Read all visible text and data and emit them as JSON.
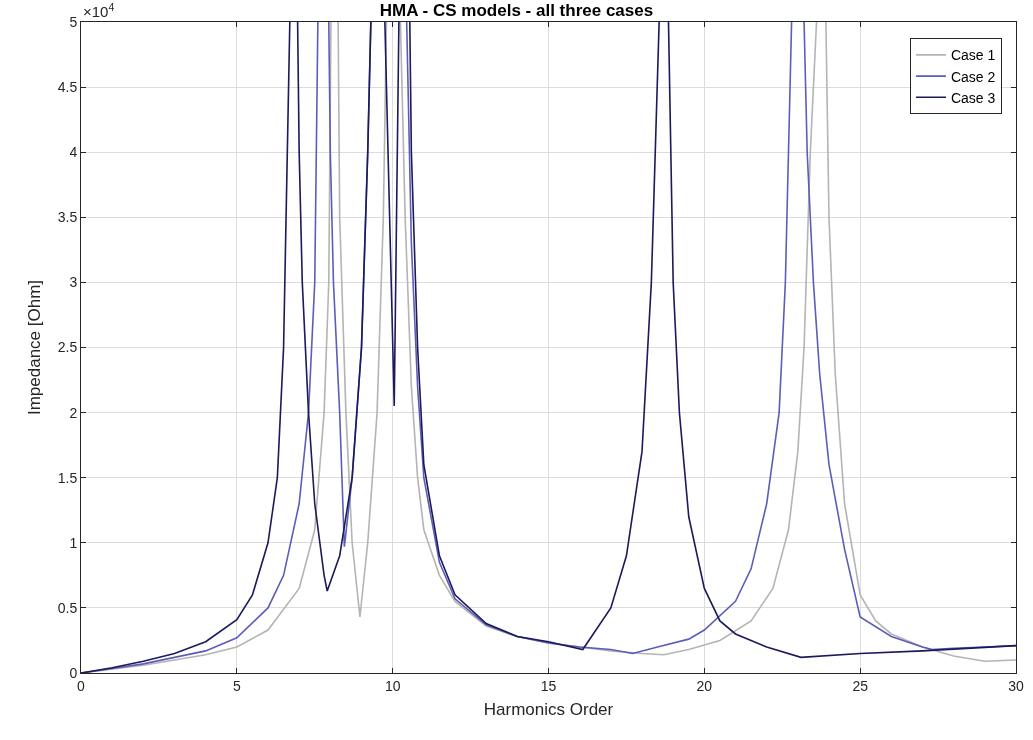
{
  "chart_data": {
    "type": "line",
    "title": "HMA - CS models - all three cases",
    "xlabel": "Harmonics Order",
    "ylabel": "Impedance [Ohm]",
    "annotations": [
      "×10$^{4}$"
    ],
    "xlim": [
      0,
      30
    ],
    "xticks": [
      0,
      5,
      10,
      15,
      20,
      25,
      30
    ],
    "ylim": [
      0,
      5
    ],
    "yticks": [
      0,
      0.5,
      1,
      1.5,
      2,
      2.5,
      3,
      3.5,
      4,
      4.5,
      5
    ],
    "grid": true,
    "legend": "top right",
    "line_style": "solid",
    "marker": "none",
    "series": [
      {
        "name": "Case 1",
        "color": "#b4b4b4",
        "x": [
          0,
          2,
          4,
          5,
          6,
          7,
          7.5,
          7.8,
          7.95,
          8.02,
          8.13,
          8.25,
          8.3,
          8.5,
          8.7,
          8.95,
          9.2,
          9.5,
          9.7,
          9.8,
          10,
          10.25,
          10.4,
          10.6,
          10.8,
          11,
          11.5,
          12,
          13,
          14,
          15,
          16,
          17,
          18,
          18.7,
          19.5,
          20.5,
          21.5,
          22.2,
          22.7,
          23,
          23.2,
          23.4,
          23.6,
          23.75,
          23.9,
          24,
          24.2,
          24.5,
          25,
          25.5,
          26,
          27,
          28,
          29,
          30
        ],
        "values": [
          0,
          0.06,
          0.14,
          0.2,
          0.33,
          0.65,
          1.1,
          2,
          3,
          5,
          null,
          5,
          3.5,
          2,
          1,
          0.43,
          1,
          2,
          3.5,
          5,
          null,
          5,
          3.5,
          2.2,
          1.5,
          1.1,
          0.75,
          0.55,
          0.36,
          0.28,
          0.23,
          0.2,
          0.17,
          0.15,
          0.14,
          0.18,
          0.25,
          0.4,
          0.65,
          1.1,
          1.7,
          2.5,
          4,
          5,
          null,
          5,
          3.5,
          2.3,
          1.3,
          0.6,
          0.4,
          0.3,
          0.2,
          0.13,
          0.09,
          0.1
        ]
      },
      {
        "name": "Case 2",
        "color": "#5b5eb8",
        "x": [
          0,
          2,
          4,
          5,
          6,
          6.5,
          7,
          7.3,
          7.5,
          7.6,
          7.8,
          7.95,
          8,
          8.1,
          8.3,
          8.45,
          8.7,
          9,
          9.2,
          9.3,
          10,
          10.45,
          10.6,
          10.8,
          11,
          11.5,
          12,
          13,
          14,
          15,
          16,
          17,
          17.7,
          18.5,
          19.5,
          20,
          21,
          21.5,
          22,
          22.4,
          22.6,
          22.8,
          23,
          23.2,
          23.3,
          23.5,
          23.7,
          24,
          24.5,
          25,
          26,
          27,
          27.3,
          28,
          29,
          30
        ],
        "values": [
          0,
          0.07,
          0.17,
          0.27,
          0.5,
          0.75,
          1.3,
          2,
          3,
          5,
          null,
          5,
          4,
          3,
          2,
          0.97,
          1.5,
          2.5,
          4,
          5,
          null,
          5,
          3.3,
          2.2,
          1.5,
          0.85,
          0.57,
          0.37,
          0.28,
          0.23,
          0.2,
          0.18,
          0.15,
          0.2,
          0.26,
          0.33,
          0.55,
          0.8,
          1.3,
          2,
          3,
          5,
          null,
          5,
          4,
          3,
          2.3,
          1.6,
          0.95,
          0.43,
          0.28,
          0.2,
          0.18,
          0.19,
          0.2,
          0.21
        ]
      },
      {
        "name": "Case 3",
        "color": "#1a1a5c",
        "x": [
          0,
          1,
          2,
          3,
          4,
          5,
          5.5,
          6,
          6.3,
          6.5,
          6.7,
          6.8,
          6.95,
          7,
          7.1,
          7.3,
          7.5,
          7.8,
          7.9,
          8.3,
          8.7,
          9,
          9.2,
          9.3,
          9.5,
          9.75,
          10.05,
          10.2,
          10.4,
          10.55,
          10.6,
          10.8,
          11,
          11.5,
          12,
          13,
          14,
          15,
          16.1,
          17,
          17.5,
          18,
          18.3,
          18.55,
          18.7,
          18.85,
          19,
          19.2,
          19.5,
          20,
          20.5,
          21,
          22,
          23.1,
          25,
          27,
          30
        ],
        "values": [
          0,
          0.04,
          0.09,
          0.15,
          0.24,
          0.41,
          0.6,
          1,
          1.5,
          2.5,
          5,
          null,
          5,
          4,
          3,
          2,
          1.3,
          0.75,
          0.63,
          0.9,
          1.5,
          2.5,
          4,
          5,
          null,
          5,
          2.05,
          5,
          null,
          5,
          4,
          2.5,
          1.6,
          0.9,
          0.6,
          0.38,
          0.28,
          0.24,
          0.18,
          0.5,
          0.9,
          1.7,
          3,
          5,
          null,
          5,
          3,
          2,
          1.2,
          0.65,
          0.4,
          0.3,
          0.2,
          0.12,
          0.15,
          0.17,
          0.21
        ]
      }
    ]
  }
}
